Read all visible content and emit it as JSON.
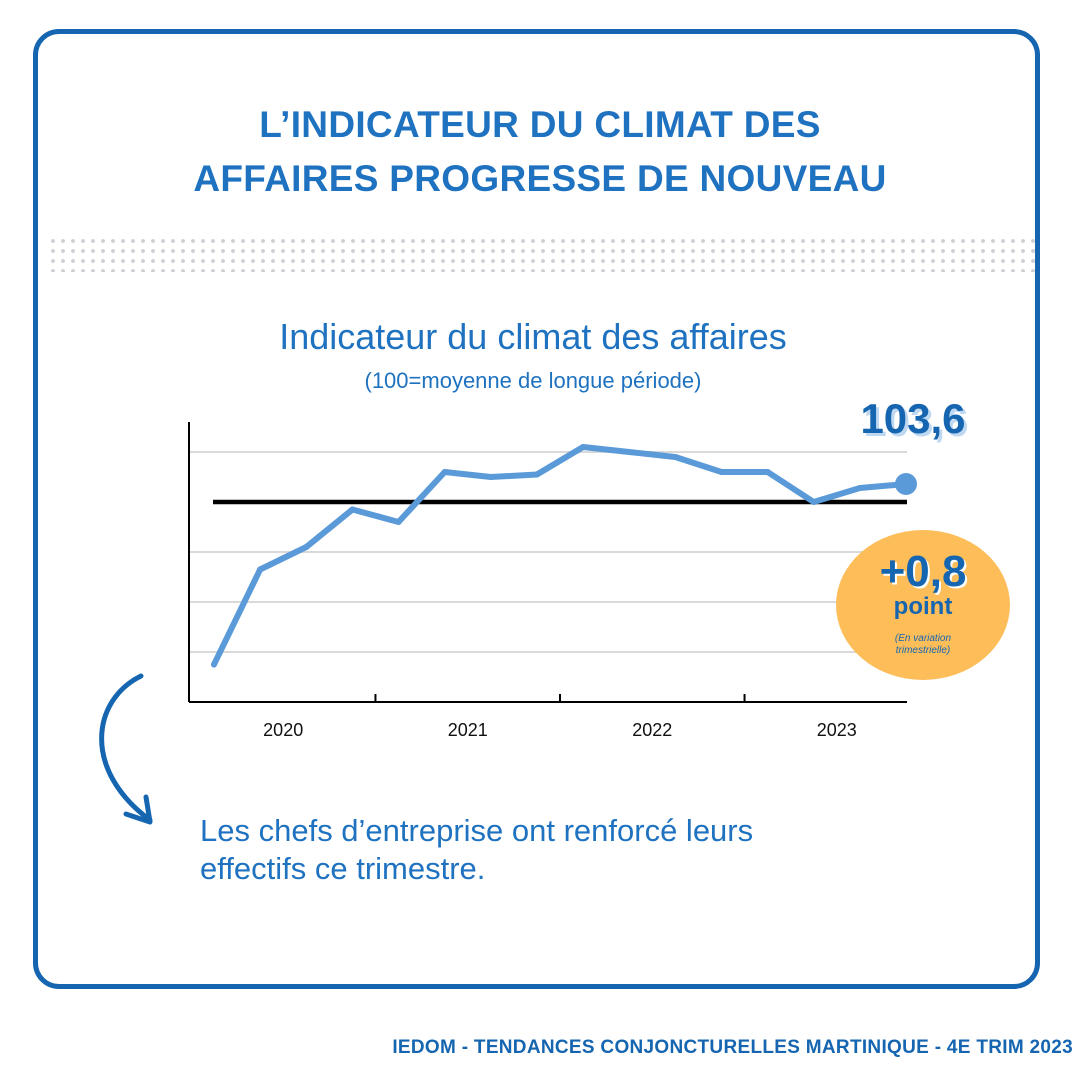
{
  "page": {
    "title_line1": "L’INDICATEUR DU CLIMAT DES",
    "title_line2": "AFFAIRES PROGRESSE DE NOUVEAU",
    "message_line1": "Les chefs d’entreprise ont renforcé leurs",
    "message_line2": "effectifs ce trimestre.",
    "footer": "IEDOM - TENDANCES CONJONCTURELLES MARTINIQUE - 4E TRIM 2023"
  },
  "colors": {
    "accent": "#1f72c0",
    "line": "#5b9ad8",
    "badge": "#fdbd59",
    "reference_line": "#000000",
    "grid": "#d9d9d9"
  },
  "highlight": {
    "last_value": "103,6",
    "change_value": "+0,8",
    "change_unit": "point",
    "change_note": "(En variation trimestrielle)"
  },
  "icons": [
    "curved-arrow-icon"
  ],
  "chart_data": {
    "type": "line",
    "title": "Indicateur du climat des affaires",
    "subtitle": "(100=moyenne de longue période)",
    "xlabel": "",
    "ylabel": "",
    "x_ticks": [
      "2020",
      "2021",
      "2022",
      "2023"
    ],
    "x": [
      "2020-T1",
      "2020-T2",
      "2020-T3",
      "2020-T4",
      "2021-T1",
      "2021-T2",
      "2021-T3",
      "2021-T4",
      "2022-T1",
      "2022-T2",
      "2022-T3",
      "2022-T4",
      "2023-T1",
      "2023-T2",
      "2023-T3",
      "2023-T4"
    ],
    "series": [
      {
        "values": [
          67.5,
          86.5,
          91,
          98.5,
          96,
          106,
          105,
          105.5,
          111,
          110,
          109,
          106,
          106,
          100,
          102.8,
          103.6
        ]
      }
    ],
    "reference_value": 100,
    "ylim": [
      60,
      116
    ],
    "grid": true,
    "highlight_last_point": true
  }
}
